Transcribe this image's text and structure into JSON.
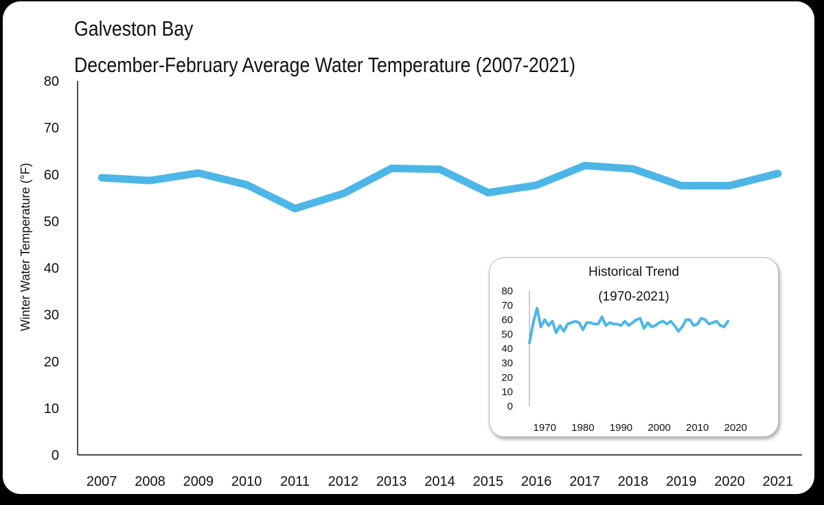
{
  "title": "Galveston Bay",
  "subtitle": "December-February Average Water Temperature (2007-2021)",
  "colors": {
    "line": "#4db6e8",
    "axis": "#111111",
    "background": "#ffffff"
  },
  "chart_data": [
    {
      "type": "line",
      "title": "Galveston Bay",
      "subtitle": "December-February Average Water Temperature (2007-2021)",
      "xlabel": "",
      "ylabel": "Winter Water Temperature (°F)",
      "ylim": [
        0,
        80
      ],
      "yticks": [
        "0",
        "10",
        "20",
        "30",
        "40",
        "50",
        "60",
        "70",
        "80"
      ],
      "categories": [
        "2007",
        "2008",
        "2009",
        "2010",
        "2011",
        "2012",
        "2013",
        "2014",
        "2015",
        "2016",
        "2017",
        "2018",
        "2019",
        "2020",
        "2021"
      ],
      "series": [
        {
          "values": [
            59.3,
            58.7,
            60.3,
            57.8,
            52.7,
            55.9,
            61.3,
            61.1,
            56.1,
            57.7,
            61.9,
            61.2,
            57.6,
            57.6,
            60.2
          ]
        }
      ],
      "grid": false,
      "legend": "none"
    },
    {
      "type": "line",
      "title": "Historical Trend",
      "subtitle": "(1970-2021)",
      "ylim": [
        0,
        80
      ],
      "yticks": [
        "0",
        "10",
        "20",
        "30",
        "40",
        "50",
        "60",
        "70",
        "80"
      ],
      "xlim": [
        1966,
        2023
      ],
      "xticks": [
        "1970",
        "1980",
        "1990",
        "2000",
        "2010",
        "2020"
      ],
      "x": [
        1966,
        1967,
        1968,
        1969,
        1970,
        1971,
        1972,
        1973,
        1974,
        1975,
        1976,
        1977,
        1978,
        1979,
        1980,
        1981,
        1982,
        1983,
        1984,
        1985,
        1986,
        1987,
        1988,
        1989,
        1990,
        1991,
        1992,
        1993,
        1994,
        1995,
        1996,
        1997,
        1998,
        1999,
        2000,
        2001,
        2002,
        2003,
        2004,
        2005,
        2006,
        2007,
        2008,
        2009,
        2010,
        2011,
        2012,
        2013,
        2014,
        2015,
        2016,
        2017,
        2018
      ],
      "series": [
        {
          "values": [
            44,
            58,
            68,
            55,
            60,
            56,
            59,
            51,
            56,
            52,
            57,
            58,
            59,
            58,
            53,
            58,
            58,
            57,
            57,
            62,
            56,
            58,
            57,
            57,
            56,
            59,
            56,
            58,
            60,
            61,
            54,
            58,
            55,
            56,
            58,
            59,
            57,
            59,
            56,
            52,
            55,
            60,
            60,
            56,
            57,
            61,
            60,
            57,
            58,
            59,
            56,
            55,
            59
          ]
        }
      ],
      "grid": false,
      "legend": "none"
    }
  ]
}
